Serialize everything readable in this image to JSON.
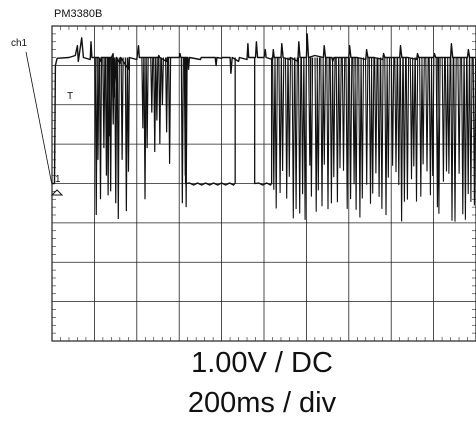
{
  "scope": {
    "model": "PM3380B",
    "channel_label": "ch1",
    "trigger_marker": "T",
    "ground_marker": "1",
    "volts_setting": "1.00V / DC",
    "time_setting": "200ms / div"
  },
  "colors": {
    "grid": "#222222",
    "trace": "#111111",
    "background": "#ffffff"
  },
  "chart_data": {
    "type": "line",
    "title": "",
    "xlabel": "200ms / div",
    "ylabel": "1.00V / DC",
    "x_unit": "div",
    "y_unit": "div",
    "xlim": [
      0,
      10
    ],
    "ylim": [
      -4,
      4
    ],
    "grid": true,
    "low_level": 0.0,
    "high_level": 3.2,
    "trigger_level": 2.2,
    "series": [
      {
        "name": "",
        "points": [
          [
            0.0,
            0.0
          ],
          [
            0.06,
            0.0
          ],
          [
            0.08,
            3.0
          ],
          [
            0.12,
            3.18
          ],
          [
            0.4,
            3.2
          ],
          [
            0.55,
            3.25
          ],
          [
            0.6,
            3.5
          ],
          [
            0.62,
            3.1
          ],
          [
            0.7,
            3.7
          ],
          [
            0.74,
            3.2
          ],
          [
            0.9,
            3.15
          ],
          [
            0.92,
            3.6
          ],
          [
            0.94,
            3.2
          ],
          [
            1.1,
            3.2
          ],
          [
            1.14,
            3.1
          ],
          [
            1.16,
            3.2
          ],
          [
            1.4,
            3.2
          ],
          [
            1.44,
            3.3
          ],
          [
            1.46,
            2.2
          ],
          [
            1.5,
            2.8
          ],
          [
            1.52,
            3.2
          ],
          [
            1.6,
            3.05
          ],
          [
            1.62,
            3.2
          ],
          [
            1.8,
            2.9
          ],
          [
            1.82,
            3.2
          ],
          [
            2.0,
            3.15
          ],
          [
            2.04,
            3.5
          ],
          [
            2.06,
            3.2
          ],
          [
            2.5,
            3.2
          ],
          [
            2.52,
            3.25
          ],
          [
            2.54,
            3.2
          ],
          [
            2.7,
            3.1
          ],
          [
            2.72,
            3.2
          ],
          [
            3.0,
            3.2
          ],
          [
            3.02,
            3.3
          ],
          [
            3.04,
            3.2
          ],
          [
            3.2,
            3.2
          ],
          [
            3.22,
            2.9
          ],
          [
            3.24,
            3.2
          ],
          [
            3.5,
            3.15
          ],
          [
            3.52,
            3.2
          ],
          [
            3.85,
            3.2
          ],
          [
            3.87,
            3.0
          ],
          [
            3.89,
            3.2
          ],
          [
            4.0,
            3.18
          ],
          [
            4.02,
            3.2
          ],
          [
            4.2,
            3.2
          ],
          [
            4.22,
            2.8
          ],
          [
            4.25,
            3.2
          ],
          [
            4.4,
            3.1
          ],
          [
            4.42,
            3.2
          ],
          [
            4.6,
            3.15
          ],
          [
            4.62,
            3.55
          ],
          [
            4.64,
            3.2
          ],
          [
            4.8,
            3.2
          ],
          [
            4.82,
            3.6
          ],
          [
            4.85,
            3.2
          ],
          [
            5.0,
            3.2
          ],
          [
            5.03,
            3.4
          ],
          [
            5.05,
            3.2
          ],
          [
            5.2,
            3.15
          ],
          [
            5.22,
            3.4
          ],
          [
            5.24,
            3.2
          ],
          [
            5.4,
            3.2
          ],
          [
            5.42,
            3.55
          ],
          [
            5.45,
            3.2
          ],
          [
            5.6,
            3.15
          ],
          [
            5.62,
            3.2
          ],
          [
            5.8,
            3.1
          ],
          [
            5.82,
            3.6
          ],
          [
            5.85,
            3.2
          ],
          [
            6.0,
            3.2
          ],
          [
            6.02,
            3.8
          ],
          [
            6.05,
            3.2
          ],
          [
            6.2,
            3.25
          ],
          [
            6.4,
            3.2
          ],
          [
            6.42,
            3.5
          ],
          [
            6.45,
            3.2
          ],
          [
            6.6,
            3.2
          ],
          [
            6.62,
            3.1
          ],
          [
            6.65,
            3.2
          ],
          [
            6.8,
            3.2
          ],
          [
            7.0,
            3.2
          ],
          [
            7.02,
            3.5
          ],
          [
            7.05,
            3.2
          ],
          [
            7.2,
            3.2
          ],
          [
            7.4,
            3.15
          ],
          [
            7.42,
            3.4
          ],
          [
            7.45,
            3.2
          ],
          [
            7.6,
            3.2
          ],
          [
            7.8,
            3.15
          ],
          [
            7.82,
            3.3
          ],
          [
            7.85,
            3.2
          ],
          [
            8.0,
            3.2
          ],
          [
            8.2,
            3.2
          ],
          [
            8.22,
            3.5
          ],
          [
            8.25,
            3.2
          ],
          [
            8.4,
            3.2
          ],
          [
            8.6,
            3.15
          ],
          [
            8.62,
            3.3
          ],
          [
            8.65,
            3.2
          ],
          [
            8.8,
            3.2
          ],
          [
            9.0,
            3.2
          ],
          [
            9.02,
            3.3
          ],
          [
            9.05,
            3.2
          ],
          [
            9.2,
            3.2
          ],
          [
            9.4,
            3.2
          ],
          [
            9.42,
            3.55
          ],
          [
            9.45,
            3.2
          ],
          [
            9.6,
            3.2
          ],
          [
            9.8,
            3.2
          ],
          [
            9.82,
            3.4
          ],
          [
            9.85,
            3.2
          ],
          [
            10.0,
            3.2
          ]
        ]
      }
    ],
    "drops": [
      [
        1.02,
        -0.8
      ],
      [
        1.06,
        0.6
      ],
      [
        1.12,
        -0.4
      ],
      [
        1.2,
        0.9
      ],
      [
        1.26,
        0.2
      ],
      [
        1.3,
        -0.3
      ],
      [
        1.33,
        1.2
      ],
      [
        1.36,
        -0.2
      ],
      [
        1.42,
        1.5
      ],
      [
        1.48,
        -0.5
      ],
      [
        1.54,
        -0.9
      ],
      [
        1.63,
        0.6
      ],
      [
        1.73,
        -0.7
      ],
      [
        1.78,
        0.3
      ],
      [
        2.12,
        1.4
      ],
      [
        2.17,
        -0.4
      ],
      [
        2.22,
        0.9
      ],
      [
        2.33,
        1.8
      ],
      [
        2.4,
        0.8
      ],
      [
        2.45,
        1.6
      ],
      [
        2.52,
        1.0
      ],
      [
        2.58,
        2.0
      ],
      [
        2.68,
        1.3
      ],
      [
        2.75,
        0.5
      ],
      [
        3.05,
        -0.5
      ],
      [
        3.12,
        0.2
      ],
      [
        3.14,
        -0.6
      ]
    ],
    "low_segments": [
      [
        3.15,
        4.32,
        0.0
      ],
      [
        4.78,
        5.18,
        0.0
      ]
    ],
    "burst": [
      {
        "start": 5.18,
        "end": 10.0,
        "count": 64,
        "min_low": -1.0,
        "max_low": 0.5
      }
    ]
  }
}
